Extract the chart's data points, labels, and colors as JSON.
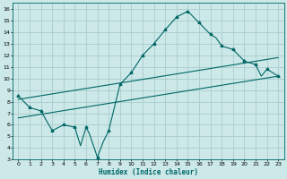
{
  "xlabel": "Humidex (Indice chaleur)",
  "bg_color": "#cce8e8",
  "grid_color": "#aacccc",
  "line_color": "#006666",
  "xlim": [
    -0.5,
    23.5
  ],
  "ylim": [
    3,
    16.5
  ],
  "yticks": [
    3,
    4,
    5,
    6,
    7,
    8,
    9,
    10,
    11,
    12,
    13,
    14,
    15,
    16
  ],
  "xticks": [
    0,
    1,
    2,
    3,
    4,
    5,
    6,
    7,
    8,
    9,
    10,
    11,
    12,
    13,
    14,
    15,
    16,
    17,
    18,
    19,
    20,
    21,
    22,
    23
  ],
  "main_x": [
    0,
    1,
    2,
    3,
    4,
    5,
    5.5,
    6,
    6.3,
    7,
    7.5,
    8,
    9,
    10,
    11,
    12,
    13,
    14,
    15,
    16,
    17,
    17.5,
    18,
    19,
    20,
    21,
    21.5,
    22,
    23
  ],
  "main_y": [
    8.5,
    7.5,
    7.2,
    5.5,
    6.0,
    5.8,
    4.2,
    5.8,
    5.2,
    3.2,
    4.5,
    5.5,
    9.5,
    10.5,
    12.0,
    13.0,
    14.2,
    15.3,
    15.8,
    14.8,
    13.8,
    13.5,
    12.8,
    12.5,
    11.5,
    11.2,
    10.2,
    10.8,
    10.2
  ],
  "marker_x": [
    0,
    1,
    2,
    3,
    4,
    5,
    6,
    7,
    8,
    9,
    10,
    11,
    12,
    13,
    14,
    15,
    16,
    17,
    18,
    19,
    20,
    21,
    22,
    23
  ],
  "marker_y": [
    8.5,
    7.5,
    7.2,
    5.5,
    6.0,
    5.8,
    5.8,
    3.2,
    5.5,
    9.5,
    10.5,
    12.0,
    13.0,
    14.2,
    15.3,
    15.8,
    14.8,
    13.8,
    12.8,
    12.5,
    11.5,
    11.2,
    10.8,
    10.2
  ],
  "line1_x": [
    0,
    23
  ],
  "line1_y": [
    8.2,
    11.8
  ],
  "line2_x": [
    0,
    23
  ],
  "line2_y": [
    6.6,
    10.2
  ]
}
